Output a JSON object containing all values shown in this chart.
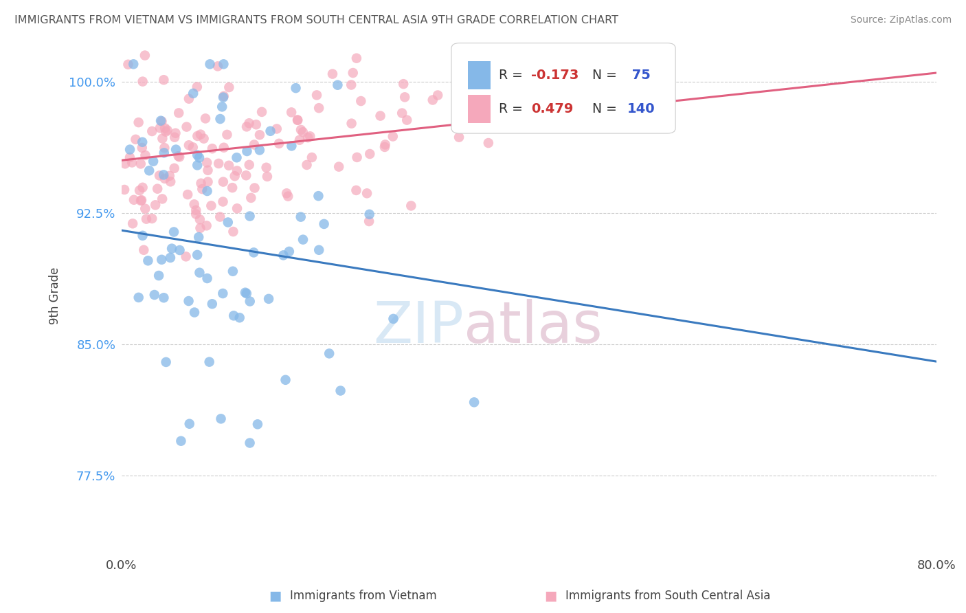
{
  "title": "IMMIGRANTS FROM VIETNAM VS IMMIGRANTS FROM SOUTH CENTRAL ASIA 9TH GRADE CORRELATION CHART",
  "source": "Source: ZipAtlas.com",
  "xlim": [
    0,
    80
  ],
  "ylim": [
    73.0,
    102.5
  ],
  "xticks": [
    0,
    80
  ],
  "xticklabels": [
    "0.0%",
    "80.0%"
  ],
  "yticks": [
    77.5,
    85.0,
    92.5,
    100.0
  ],
  "yticklabels": [
    "77.5%",
    "85.0%",
    "92.5%",
    "100.0%"
  ],
  "blue_color": "#85b8e8",
  "pink_color": "#f5a8bb",
  "blue_line_color": "#3a7abf",
  "pink_line_color": "#e06080",
  "legend_R_blue_label": "R = ",
  "legend_R_blue_val": "-0.173",
  "legend_N_blue_label": "N = ",
  "legend_N_blue_val": " 75",
  "legend_R_pink_label": "R = ",
  "legend_R_pink_val": "0.479",
  "legend_N_pink_label": "N = ",
  "legend_N_pink_val": "140",
  "watermark_zip": "ZIP",
  "watermark_atlas": "atlas",
  "ylabel": "9th Grade",
  "blue_trend_x": [
    0,
    80
  ],
  "blue_trend_y": [
    91.5,
    84.0
  ],
  "pink_trend_x": [
    0,
    80
  ],
  "pink_trend_y": [
    95.5,
    100.5
  ],
  "seed_blue": 42,
  "seed_pink": 99
}
